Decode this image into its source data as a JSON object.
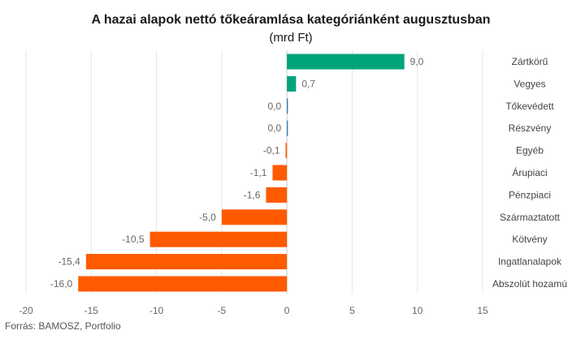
{
  "chart_data": {
    "type": "bar",
    "orientation": "horizontal",
    "title": "A hazai alapok nettó tőkeáramlása kategóriánként augusztusban",
    "subtitle": "(mrd Ft)",
    "categories": [
      "Zártkörű",
      "Vegyes",
      "Tőkevédett",
      "Részvény",
      "Egyéb",
      "Árupiaci",
      "Pénzpiaci",
      "Származtatott",
      "Kötvény",
      "Ingatlanalapok",
      "Abszolút hozamú"
    ],
    "values": [
      9.0,
      0.7,
      0.0,
      0.0,
      -0.1,
      -1.1,
      -1.6,
      -5.0,
      -10.5,
      -15.4,
      -16.0
    ],
    "value_labels": [
      "9,0",
      "0,7",
      "0,0",
      "0,0",
      "-0,1",
      "-1,1",
      "-1,6",
      "-5,0",
      "-10,5",
      "-15,4",
      "-16,0"
    ],
    "xlim": [
      -20,
      15
    ],
    "x_ticks": [
      -20,
      -15,
      -10,
      -5,
      0,
      5,
      10,
      15
    ],
    "grid": true,
    "colors": {
      "positive": "#00a37a",
      "zero": "#1f6fb2",
      "negative": "#ff5a00"
    },
    "source": "Forrás: BAMOSZ, Portfolio"
  }
}
